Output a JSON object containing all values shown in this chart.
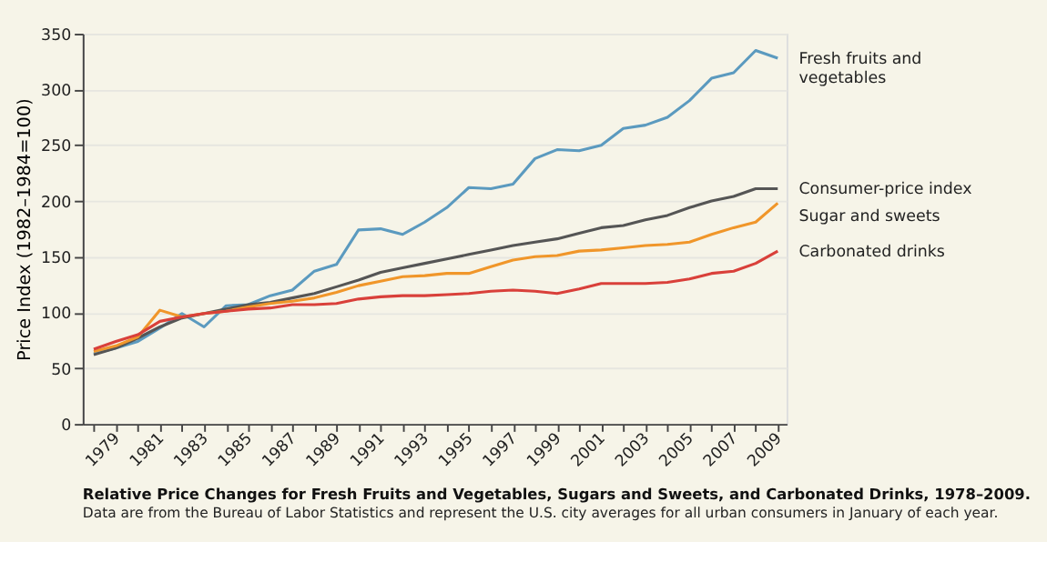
{
  "chart_data": {
    "type": "line",
    "title": "Relative Price Changes for Fresh Fruits and Vegetables, Sugars and Sweets, and Carbonated Drinks, 1978–2009.",
    "annotations": [
      "Data are from the Bureau of Labor Statistics and represent the U.S. city averages for all urban consumers in January of each year."
    ],
    "ylabel": "Price Index (1982–1984=100)",
    "x": [
      1978,
      1979,
      1980,
      1981,
      1982,
      1983,
      1984,
      1985,
      1986,
      1987,
      1988,
      1989,
      1990,
      1991,
      1992,
      1993,
      1994,
      1995,
      1996,
      1997,
      1998,
      1999,
      2000,
      2001,
      2002,
      2003,
      2004,
      2005,
      2006,
      2007,
      2008,
      2009
    ],
    "series": [
      {
        "name": "Fresh fruits and vegetables",
        "color": "#5b9abf",
        "values": [
          63,
          68,
          74,
          86,
          99,
          87,
          106,
          107,
          115,
          120,
          137,
          143,
          174,
          175,
          170,
          181,
          194,
          212,
          211,
          215,
          238,
          246,
          245,
          250,
          265,
          268,
          275,
          290,
          310,
          315,
          335,
          328
        ]
      },
      {
        "name": "Consumer-price index",
        "color": "#555555",
        "values": [
          62,
          68,
          77,
          87,
          95,
          99,
          103,
          107,
          109,
          113,
          117,
          123,
          129,
          136,
          140,
          144,
          148,
          152,
          156,
          160,
          163,
          166,
          171,
          176,
          178,
          183,
          187,
          194,
          200,
          204,
          211,
          211
        ]
      },
      {
        "name": "Sugar and sweets",
        "color": "#f0962a",
        "values": [
          65,
          70,
          78,
          102,
          96,
          99,
          101,
          105,
          108,
          110,
          113,
          118,
          124,
          128,
          132,
          133,
          135,
          135,
          141,
          147,
          150,
          151,
          155,
          156,
          158,
          160,
          161,
          163,
          170,
          176,
          181,
          198
        ]
      },
      {
        "name": "Carbonated drinks",
        "color": "#d9403a",
        "values": [
          67,
          74,
          80,
          92,
          96,
          99,
          101,
          103,
          104,
          107,
          107,
          108,
          112,
          114,
          115,
          115,
          116,
          117,
          119,
          120,
          119,
          117,
          121,
          126,
          126,
          126,
          127,
          130,
          135,
          137,
          144,
          155
        ]
      }
    ],
    "xlim": [
      1977.5,
      2009.4
    ],
    "xticks": [
      {
        "value": 1978,
        "label": null
      },
      1979,
      {
        "value": 1980,
        "label": null
      },
      1981,
      {
        "value": 1982,
        "label": null
      },
      1983,
      {
        "value": 1984,
        "label": null
      },
      1985,
      {
        "value": 1986,
        "label": null
      },
      1987,
      {
        "value": 1988,
        "label": null
      },
      1989,
      {
        "value": 1990,
        "label": null
      },
      1991,
      {
        "value": 1992,
        "label": null
      },
      1993,
      {
        "value": 1994,
        "label": null
      },
      1995,
      {
        "value": 1996,
        "label": null
      },
      1997,
      {
        "value": 1998,
        "label": null
      },
      1999,
      {
        "value": 2000,
        "label": null
      },
      2001,
      {
        "value": 2002,
        "label": null
      },
      2003,
      {
        "value": 2004,
        "label": null
      },
      2005,
      {
        "value": 2006,
        "label": null
      },
      2007,
      {
        "value": 2008,
        "label": null
      },
      2009
    ],
    "ylim": [
      0,
      350
    ],
    "yticks": [
      0,
      50,
      100,
      150,
      200,
      250,
      300,
      350
    ],
    "grid": "y",
    "legend": false,
    "line_style": "solid",
    "marker": "none"
  }
}
